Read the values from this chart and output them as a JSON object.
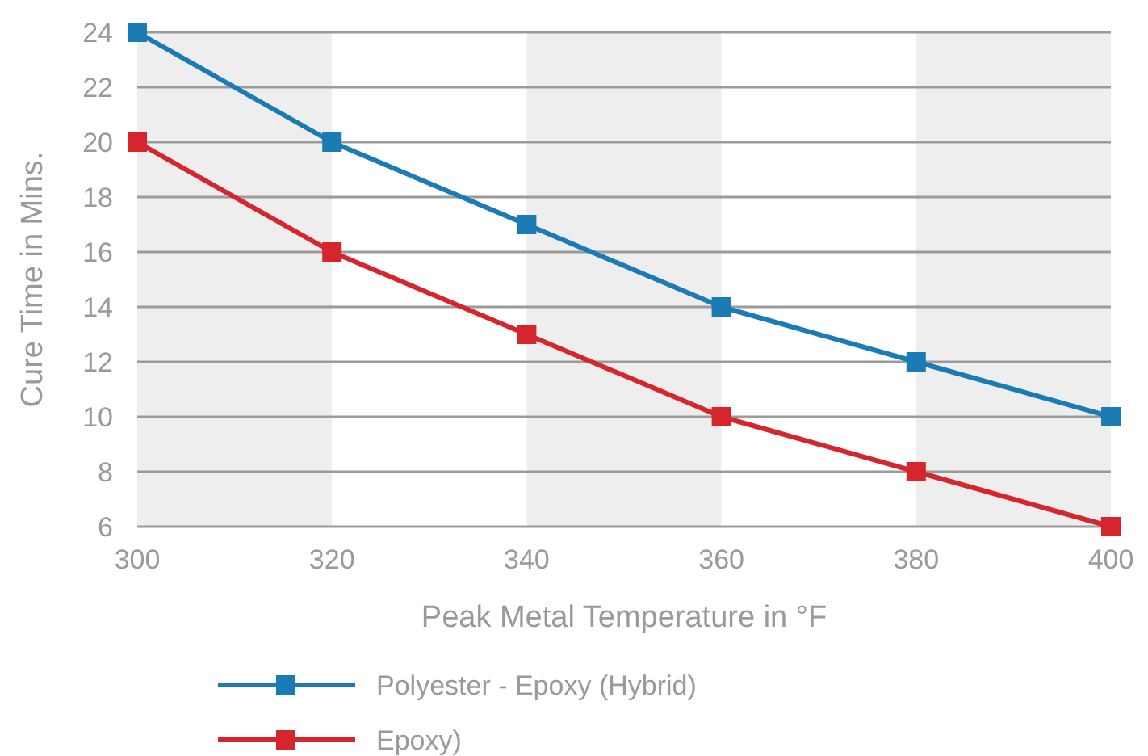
{
  "chart_data": {
    "type": "line",
    "xlabel": "Peak Metal Temperature in °F",
    "ylabel": "Cure Time in Mins.",
    "x": [
      300,
      320,
      340,
      360,
      380,
      400
    ],
    "series": [
      {
        "name": "Polyester - Epoxy (Hybrid)",
        "color": "#1b7bb5",
        "values": [
          24,
          20,
          17,
          14,
          12,
          10
        ]
      },
      {
        "name": "Epoxy)",
        "color": "#d5262d",
        "values": [
          20,
          16,
          13,
          10,
          8,
          6
        ]
      }
    ],
    "xlim": [
      300,
      400
    ],
    "xticks": [
      300,
      320,
      340,
      360,
      380,
      400
    ],
    "ylim": [
      6,
      24
    ],
    "yticks": [
      6,
      8,
      10,
      12,
      14,
      16,
      18,
      20,
      22,
      24
    ],
    "grid": "y",
    "legend": "bottom",
    "marker": "square",
    "line_style": "solid",
    "bands": [
      {
        "axis": "x",
        "from": 300,
        "to": 320,
        "color": "#eeeeee"
      },
      {
        "axis": "x",
        "from": 340,
        "to": 360,
        "color": "#eeeeee"
      },
      {
        "axis": "x",
        "from": 380,
        "to": 400,
        "color": "#eeeeee"
      }
    ]
  }
}
